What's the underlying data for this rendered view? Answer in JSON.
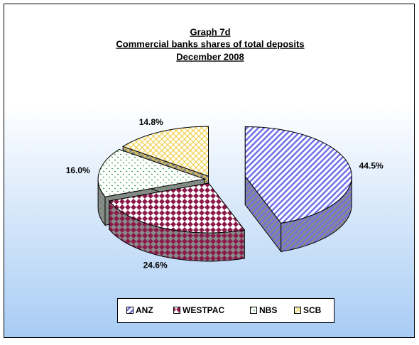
{
  "chart_data": {
    "type": "pie3d",
    "title": [
      "Graph 7d",
      "Commercial banks shares of  total deposits",
      "December 2008"
    ],
    "categories": [
      "ANZ",
      "WESTPAC",
      "NBS",
      "SCB"
    ],
    "values": [
      44.5,
      24.6,
      16.0,
      14.8
    ],
    "value_labels": [
      "44.5%",
      "24.6%",
      "16.0%",
      "14.8%"
    ],
    "colors": [
      "#6f6fe8",
      "#8b1a4a",
      "#2e9a4a",
      "#f0d050"
    ],
    "legend": "bottom"
  }
}
